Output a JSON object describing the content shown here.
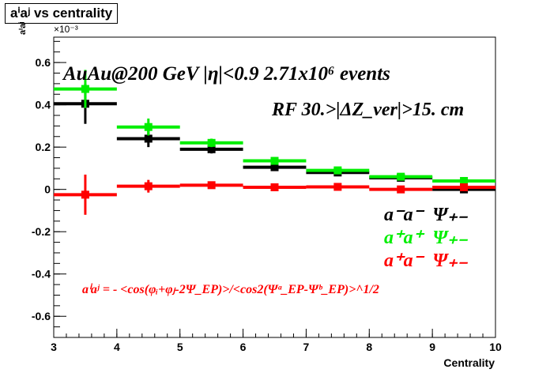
{
  "title": "aⁱaʲ vs centrality",
  "exponent_label": "×10⁻³",
  "annotations": {
    "line1": "AuAu@200 GeV |η|<0.9 2.71x10⁶ events",
    "line2": "RF 30.>|ΔZ_ver|>15. cm"
  },
  "formula": "aⁱaʲ = - <cos(φᵢ+φⱼ-2Ψ_EP)>/<cos2(Ψᵃ_EP-Ψᵇ_EP)>^1/2",
  "legend": [
    {
      "label": "a⁻a⁻",
      "psi": "Ψ₊₋",
      "color": "#000000"
    },
    {
      "label": "a⁺a⁺",
      "psi": "Ψ₊₋",
      "color": "#00ee00"
    },
    {
      "label": "a⁺a⁻",
      "psi": "Ψ₊₋",
      "color": "#ff0000"
    }
  ],
  "chart_data": {
    "type": "scatter",
    "title": "aⁱaʲ vs centrality",
    "xlabel": "Centrality",
    "ylabel": "aⁱaʲ",
    "y_scale_label": "×10⁻³",
    "xlim": [
      3,
      10
    ],
    "ylim": [
      -0.7,
      0.72
    ],
    "xticks": [
      3,
      4,
      5,
      6,
      7,
      8,
      9,
      10
    ],
    "yticks": [
      -0.6,
      -0.4,
      -0.2,
      0,
      0.2,
      0.4,
      0.6
    ],
    "ytick_labels": [
      "-0.6",
      "-0.4",
      "-0.2",
      "0",
      "0.2",
      "0.4",
      "0.6"
    ],
    "x": [
      3.5,
      4.5,
      5.5,
      6.5,
      7.5,
      8.5,
      9.5
    ],
    "x_halfwidth": 0.5,
    "grid": false,
    "series": [
      {
        "name": "a⁻a⁻",
        "color": "#000000",
        "values": [
          0.405,
          0.24,
          0.19,
          0.105,
          0.08,
          0.055,
          0.0
        ],
        "errors": [
          0.095,
          0.04,
          0.02,
          0.015,
          0.013,
          0.012,
          0.012
        ]
      },
      {
        "name": "a⁺a⁺",
        "color": "#00ee00",
        "values": [
          0.475,
          0.295,
          0.22,
          0.135,
          0.09,
          0.06,
          0.04
        ],
        "errors": [
          0.09,
          0.04,
          0.02,
          0.015,
          0.013,
          0.012,
          0.012
        ]
      },
      {
        "name": "a⁺a⁻",
        "color": "#ff0000",
        "values": [
          -0.025,
          0.015,
          0.02,
          0.01,
          0.012,
          0.0,
          0.01
        ],
        "errors": [
          0.095,
          0.03,
          0.015,
          0.012,
          0.012,
          0.012,
          0.012
        ]
      }
    ]
  }
}
